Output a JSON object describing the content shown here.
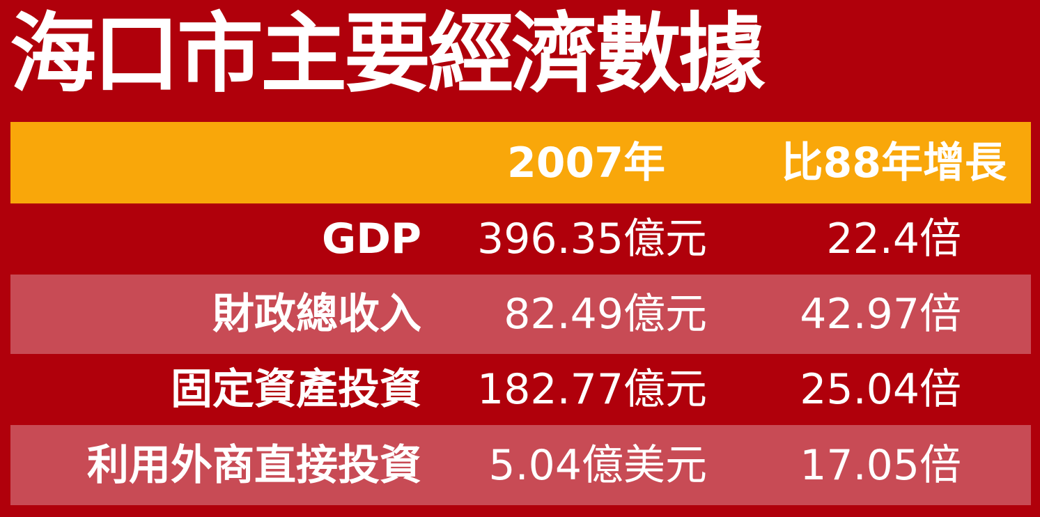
{
  "header": {
    "title": "海口市主要經濟數據"
  },
  "table": {
    "columns": [
      "2007年",
      "比88年增長"
    ],
    "rows": [
      [
        "GDP",
        "396.35億元",
        "22.4倍"
      ],
      [
        "財政總收入",
        "82.49億元",
        "42.97倍"
      ],
      [
        "固定資產投資",
        "182.77億元",
        "25.04倍"
      ],
      [
        "利用外商直接投資",
        "5.04億美元",
        "17.05倍"
      ]
    ]
  }
}
